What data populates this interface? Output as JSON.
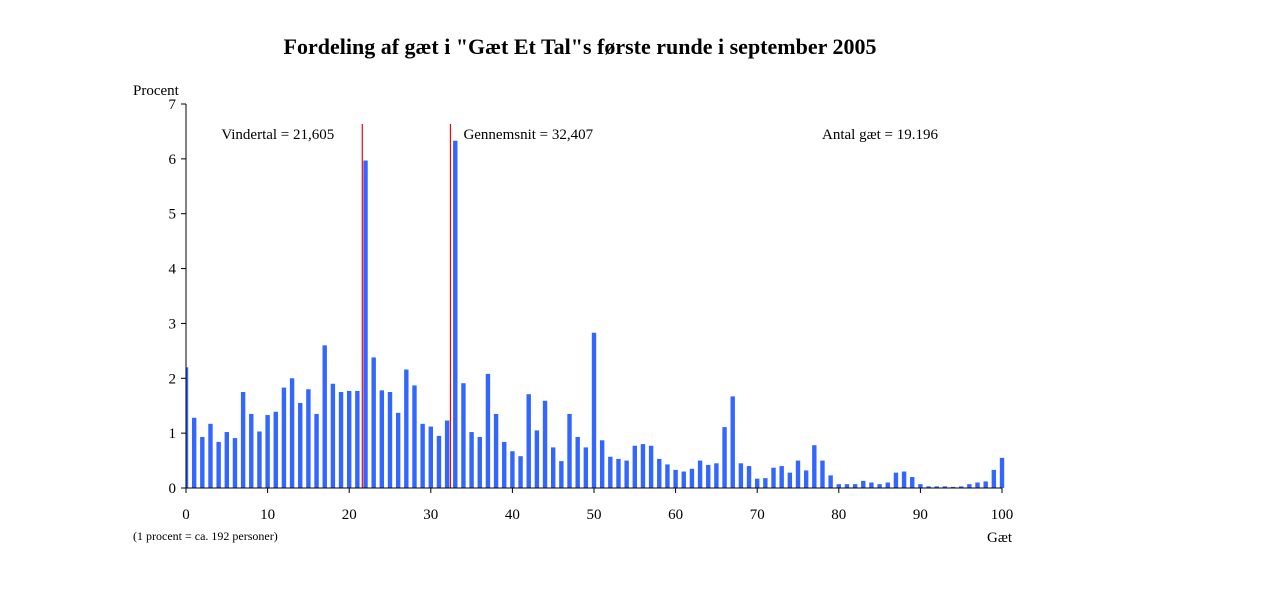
{
  "chart_data": {
    "type": "bar",
    "title": "Fordeling af gæt i \"Gæt Et Tal\"s første runde i september 2005",
    "ylabel": "Procent",
    "xlabel": "Gæt",
    "note": "(1 procent = ca. 192 personer)",
    "ylim": [
      0,
      7
    ],
    "xlim": [
      0,
      100
    ],
    "yticks": [
      0,
      1,
      2,
      3,
      4,
      5,
      6,
      7
    ],
    "xticks": [
      0,
      10,
      20,
      30,
      40,
      50,
      60,
      70,
      80,
      90,
      100
    ],
    "bar_color": "#3366ff",
    "line_color": "#ff0000",
    "x": [
      0,
      1,
      2,
      3,
      4,
      5,
      6,
      7,
      8,
      9,
      10,
      11,
      12,
      13,
      14,
      15,
      16,
      17,
      18,
      19,
      20,
      21,
      22,
      23,
      24,
      25,
      26,
      27,
      28,
      29,
      30,
      31,
      32,
      33,
      34,
      35,
      36,
      37,
      38,
      39,
      40,
      41,
      42,
      43,
      44,
      45,
      46,
      47,
      48,
      49,
      50,
      51,
      52,
      53,
      54,
      55,
      56,
      57,
      58,
      59,
      60,
      61,
      62,
      63,
      64,
      65,
      66,
      67,
      68,
      69,
      70,
      71,
      72,
      73,
      74,
      75,
      76,
      77,
      78,
      79,
      80,
      81,
      82,
      83,
      84,
      85,
      86,
      87,
      88,
      89,
      90,
      91,
      92,
      93,
      94,
      95,
      96,
      97,
      98,
      99,
      100
    ],
    "values": [
      2.2,
      1.28,
      0.93,
      1.17,
      0.84,
      1.02,
      0.91,
      1.75,
      1.35,
      1.03,
      1.33,
      1.39,
      1.83,
      2.0,
      1.55,
      1.8,
      1.35,
      2.6,
      1.9,
      1.75,
      1.77,
      1.77,
      5.97,
      2.38,
      1.78,
      1.75,
      1.37,
      2.16,
      1.87,
      1.17,
      1.12,
      0.95,
      1.23,
      6.33,
      1.91,
      1.02,
      0.93,
      2.08,
      1.35,
      0.84,
      0.67,
      0.58,
      1.71,
      1.05,
      1.59,
      0.74,
      0.49,
      1.35,
      0.93,
      0.74,
      2.83,
      0.87,
      0.57,
      0.53,
      0.5,
      0.77,
      0.8,
      0.77,
      0.53,
      0.43,
      0.33,
      0.3,
      0.35,
      0.5,
      0.42,
      0.45,
      1.11,
      1.67,
      0.45,
      0.4,
      0.17,
      0.18,
      0.37,
      0.4,
      0.28,
      0.5,
      0.32,
      0.78,
      0.5,
      0.23,
      0.07,
      0.07,
      0.07,
      0.13,
      0.1,
      0.07,
      0.1,
      0.28,
      0.3,
      0.2,
      0.07,
      0.03,
      0.03,
      0.03,
      0.02,
      0.03,
      0.07,
      0.1,
      0.12,
      0.33,
      0.55
    ],
    "vlines": [
      {
        "x": 21.605,
        "label": "Vindertal = 21,605",
        "label_side": "left"
      },
      {
        "x": 32.407,
        "label": "Gennemsnit = 32,407",
        "label_side": "right"
      }
    ],
    "annotation": "Antal gæt = 19.196"
  }
}
